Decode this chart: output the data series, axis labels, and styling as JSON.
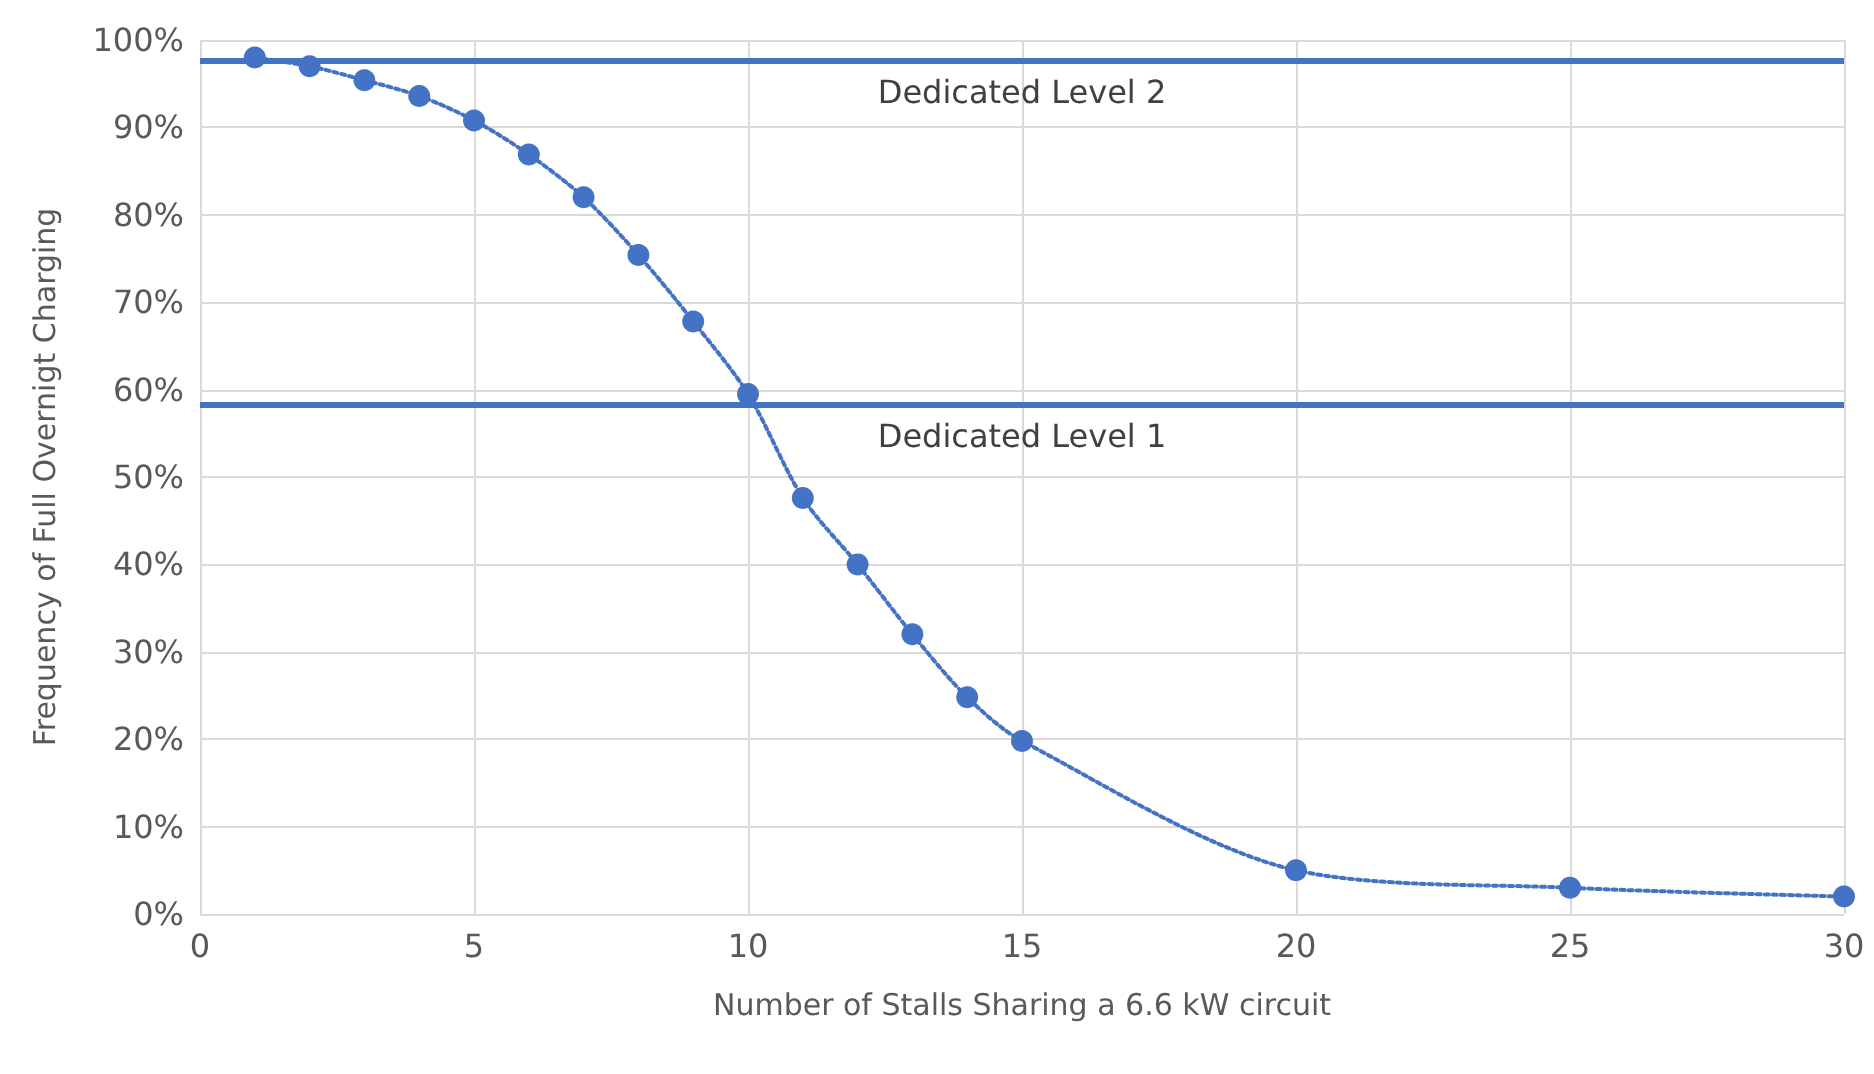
{
  "chart_data": {
    "type": "line",
    "xlabel": "Number of Stalls Sharing a 6.6 kW circuit",
    "ylabel": "Frequency of Full Overnigt Charging",
    "x": [
      1,
      2,
      3,
      4,
      5,
      6,
      7,
      8,
      9,
      10,
      11,
      12,
      13,
      14,
      15,
      20,
      25,
      30
    ],
    "series": [
      {
        "color": "#4472c4",
        "values": [
          98,
          97,
          95.4,
          93.6,
          90.8,
          86.9,
          82,
          75.4,
          67.8,
          59.5,
          47.6,
          40,
          32,
          24.8,
          19.8,
          5,
          3,
          2
        ]
      }
    ],
    "xlim": [
      0,
      30
    ],
    "xticks": [
      0,
      5,
      10,
      15,
      20,
      25,
      30
    ],
    "ylim": [
      0,
      100
    ],
    "yticks": [
      {
        "value": 0,
        "label": "0%"
      },
      {
        "value": 10,
        "label": "10%"
      },
      {
        "value": 20,
        "label": "20%"
      },
      {
        "value": 30,
        "label": "30%"
      },
      {
        "value": 40,
        "label": "40%"
      },
      {
        "value": 50,
        "label": "50%"
      },
      {
        "value": 60,
        "label": "60%"
      },
      {
        "value": 70,
        "label": "70%"
      },
      {
        "value": 80,
        "label": "80%"
      },
      {
        "value": 90,
        "label": "90%"
      },
      {
        "value": 100,
        "label": "100%"
      }
    ],
    "ref_lines": [
      {
        "axis": "y",
        "value": 97.7,
        "label": "Dedicated Level 2",
        "color": "#4472c4"
      },
      {
        "axis": "y",
        "value": 58.4,
        "label": "Dedicated Level 1",
        "color": "#4472c4"
      }
    ],
    "grid": true,
    "marker": "circle",
    "line_style": "dotted"
  }
}
